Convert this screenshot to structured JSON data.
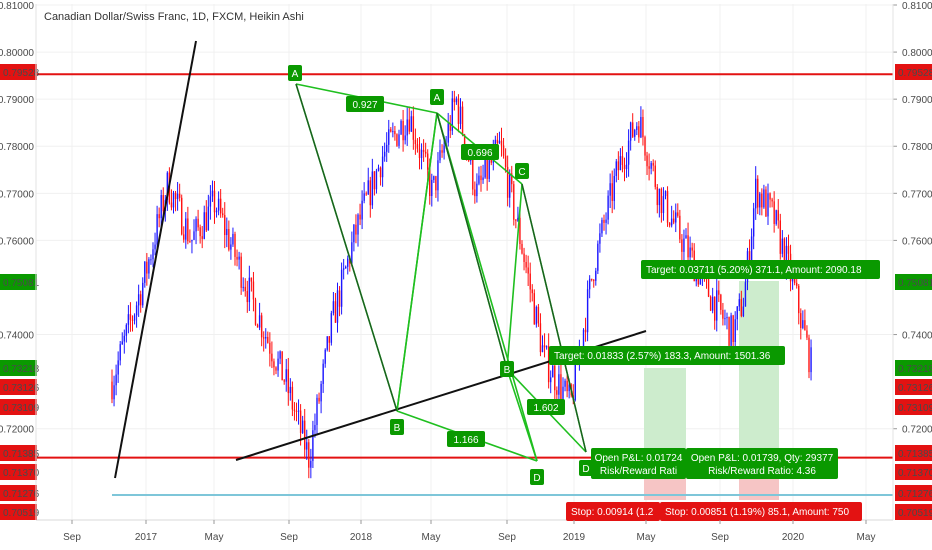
{
  "header": {
    "title": "Canadian Dollar/Swiss Franc, 1D, FXCM, Heikin Ashi"
  },
  "colors": {
    "up": "#1c17ff",
    "down": "#ff1111",
    "green_line": "#1fbf1f",
    "label_green": "#0a9900",
    "label_red": "#e31212",
    "trend": "#111111",
    "level_red": "#e31212",
    "level_blue": "#7ec6d9",
    "target_zone": "#cdeccd",
    "stop_zone": "#f6c5c5"
  },
  "chart_data": {
    "type": "candlestick",
    "title": "Canadian Dollar/Swiss Franc, 1D, FXCM, Heikin Ashi",
    "x_ticks": [
      "Sep",
      "2017",
      "May",
      "Sep",
      "2018",
      "May",
      "Sep",
      "2019",
      "May",
      "Sep",
      "2020",
      "May"
    ],
    "y_ticks": [
      "0.81000",
      "0.80000",
      "0.79000",
      "0.78000",
      "0.77000",
      "0.76000",
      "0.74000",
      "0.72000"
    ],
    "y_range": [
      0.7035,
      0.8135
    ],
    "price_labels": [
      {
        "value": "0.79528",
        "color": "red"
      },
      {
        "value": "0.75081",
        "color": "green"
      },
      {
        "value": "0.73218",
        "color": "green"
      },
      {
        "value": "0.73126",
        "color": "red"
      },
      {
        "value": "0.73109",
        "color": "red"
      },
      {
        "value": "0.71385",
        "color": "red"
      },
      {
        "value": "0.71370",
        "color": "red"
      },
      {
        "value": "0.71276",
        "color": "red"
      },
      {
        "value": "0.70519",
        "color": "red"
      }
    ],
    "price_path": [
      [
        2016.61,
        0.73
      ],
      [
        2016.72,
        0.752
      ],
      [
        2016.8,
        0.772
      ],
      [
        2016.88,
        0.76
      ],
      [
        2016.96,
        0.768
      ],
      [
        2017.04,
        0.755
      ],
      [
        2017.12,
        0.742
      ],
      [
        2017.2,
        0.73
      ],
      [
        2017.28,
        0.7138
      ],
      [
        2017.36,
        0.743
      ],
      [
        2017.44,
        0.762
      ],
      [
        2017.53,
        0.778
      ],
      [
        2017.62,
        0.787
      ],
      [
        2017.7,
        0.77
      ],
      [
        2017.78,
        0.79
      ],
      [
        2017.85,
        0.77
      ],
      [
        2017.93,
        0.78
      ],
      [
        2018.0,
        0.76
      ],
      [
        2018.08,
        0.735
      ],
      [
        2018.17,
        0.7252
      ],
      [
        2018.25,
        0.755
      ],
      [
        2018.33,
        0.775
      ],
      [
        2018.4,
        0.786
      ],
      [
        2018.47,
        0.77
      ],
      [
        2018.55,
        0.76
      ],
      [
        2018.63,
        0.75
      ],
      [
        2018.72,
        0.74
      ],
      [
        2018.76,
        0.748
      ],
      [
        2018.8,
        0.771
      ],
      [
        2018.86,
        0.765
      ],
      [
        2018.93,
        0.75
      ],
      [
        2018.99,
        0.733
      ]
    ],
    "harmonic_points": [
      {
        "label": "A",
        "x": 2017.64,
        "y": 0.792
      },
      {
        "label": "B",
        "x": 2018.17,
        "y": 0.7252
      },
      {
        "label": "A",
        "x": 2018.4,
        "y": 0.7865
      },
      {
        "label": "C",
        "x": 2018.8,
        "y": 0.771
      },
      {
        "label": "B",
        "x": 2018.74,
        "y": 0.734
      },
      {
        "label": "D",
        "x": 2018.95,
        "y": 0.714
      },
      {
        "label": "D",
        "x": 2019.05,
        "y": 0.7165
      }
    ],
    "ratio_labels": [
      "0.927",
      "0.696",
      "1.602",
      "1.166"
    ],
    "trendlines": [
      "ascending support",
      "steep up-trend"
    ],
    "levels": [
      "0.79528",
      "0.71385",
      "0.71276"
    ]
  },
  "labels": {
    "target_upper": "Target: 0.03711 (5.20%) 371.1, Amount: 2090.18",
    "target_lower": "Target: 0.01833 (2.57%) 183.3, Amount: 1501.36",
    "pl_left_1": "Open P&L: 0.01724",
    "pl_left_2": "Risk/Reward Rati",
    "pl_right_1": "Open P&L: 0.01739, Qty: 29377",
    "pl_right_2": "Risk/Reward Ratio: 4.36",
    "stop_left": "Stop: 0.00914 (1.2",
    "stop_right": "Stop: 0.00851 (1.19%) 85.1, Amount: 750"
  }
}
